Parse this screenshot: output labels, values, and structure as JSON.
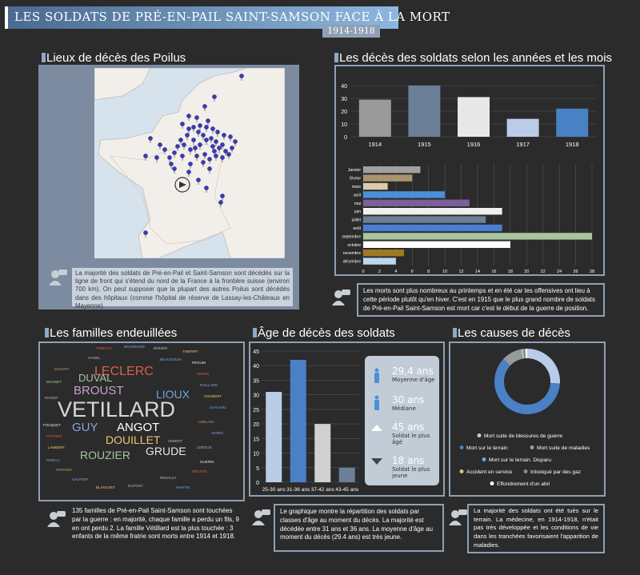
{
  "header": {
    "title": "LES SOLDATS DE PRÉ-EN-PAIL SAINT-SAMSON FACE À LA MORT",
    "years": "1914-1918"
  },
  "sections": {
    "map": "Lieux de décès des Poilus",
    "years": "Les décès des soldats selon les années et les mois",
    "families": "Les familles endeuillées",
    "age": "Âge de décès des soldats",
    "causes": "Les causes de décès"
  },
  "notes": {
    "map": "La majorité des soldats de Pré-en-Pail et Saint-Samson sont décédés sur la ligne de front qui s'étend du nord de la France à la frontière suisse (environ 700 km). On peut supposer que la plupart des autres Poilus sont décédés dans des hôpitaux (comme l'hôpital de réserve de Lassay-les-Châteaux en Mayenne).",
    "years": "Les morts sont plus nombreux au printemps et en été car les offensives ont lieu à cette période plutôt qu'en hiver. C'est en 1915 que le plus grand nombre de soldats de Pré-en-Pail Saint-Samson est mort car c'est le début de la guerre de position.",
    "families": "135 familles de Pré-en-Pail Saint-Samson sont touchées par la guerre : en majorité, chaque famille a perdu un fils, 9 en ont perdu 2. La famille Vétillard est la plus touchée : 3 enfants de la même fratrie sont morts entre 1914 et 1918.",
    "age": "Le graphique montre la répartition des soldats par classes d'âge au moment du décès. La majorité est décédée entre 31 ans et 36 ans. La moyenne d'âge au moment du décès (29.4 ans) est très jeune.",
    "causes": "La majorité des soldats ont été tués sur le terrain. La médecine, en 1914-1918, n'était pas très développée et les conditions de vie dans les tranchées favorisaient l'apparition de maladies."
  },
  "wordcloud": {
    "big": [
      "VETILLARD",
      "LECLERC",
      "BROUST",
      "LIOUX",
      "DUVAL",
      "GUY",
      "ANGOT",
      "DOUILLET",
      "ROUZIER",
      "GRUDE"
    ],
    "small": [
      "TRIBOUT",
      "BOUGEARD",
      "BODIER",
      "THIERRY",
      "HAMEL",
      "BEAUDOUIN",
      "PEGUIN",
      "BAUDRY",
      "MOREL",
      "RAILLARD",
      "MAUDET",
      "GOUBERT",
      "ROGER",
      "CHAUVEL",
      "FOUQUET",
      "LEBLANC",
      "POTTIER",
      "VIVIEN",
      "HEBERT",
      "LAMBERT",
      "LEROUX",
      "PINEAU",
      "GUERIN",
      "PERRIER",
      "BRETON",
      "GAUTIER",
      "RENAULT",
      "BLANCHET",
      "DUPONT",
      "MARTIN"
    ]
  },
  "age_stats": [
    {
      "value": "29,4 ans",
      "label": "Moyenne d'âge"
    },
    {
      "value": "30 ans",
      "label": "Médiane"
    },
    {
      "value": "45 ans",
      "label": "Soldat le plus âgé"
    },
    {
      "value": "18 ans",
      "label": "Soldat le plus jeune"
    }
  ],
  "chart_data": [
    {
      "id": "years",
      "type": "bar",
      "categories": [
        "1914",
        "1915",
        "1916",
        "1917",
        "1918"
      ],
      "values": [
        29,
        40,
        31,
        14,
        22
      ],
      "colors": [
        "#9a9a9a",
        "#6b7f99",
        "#e8e8e8",
        "#b9cde8",
        "#4a80c4"
      ],
      "ylim": [
        0,
        45
      ],
      "yticks": [
        0,
        10,
        20,
        30,
        40
      ]
    },
    {
      "id": "months",
      "type": "bar",
      "orientation": "horizontal",
      "categories": [
        "Janvier",
        "février",
        "mars",
        "avril",
        "mai",
        "juin",
        "juillet",
        "août",
        "septembre",
        "octobre",
        "novembre",
        "décembre"
      ],
      "values": [
        7,
        6,
        3,
        10,
        13,
        17,
        15,
        17,
        28,
        18,
        5,
        4
      ],
      "colors": [
        "#a0a0a0",
        "#a89470",
        "#e0c9a6",
        "#4a90d9",
        "#7a5f9a",
        "#f0f0f0",
        "#6b7f99",
        "#4a7fd0",
        "#a8c4a0",
        "#ffffff",
        "#a07820",
        "#b9d8f0"
      ],
      "xlim": [
        0,
        28
      ],
      "xticks": [
        0,
        2,
        4,
        6,
        8,
        10,
        12,
        14,
        16,
        18,
        20,
        22,
        24,
        26,
        28
      ]
    },
    {
      "id": "age",
      "type": "bar",
      "categories": [
        "25-30 ans",
        "31-36 ans",
        "37-42 ans",
        "43-45 ans"
      ],
      "values": [
        31,
        42,
        20,
        5
      ],
      "colors": [
        "#b9cde8",
        "#4a80c4",
        "#d0d0d0",
        "#6b7f99"
      ],
      "ylim": [
        0,
        45
      ],
      "yticks": [
        0,
        5,
        10,
        15,
        20,
        25,
        30,
        35,
        40,
        45
      ]
    },
    {
      "id": "causes",
      "type": "pie",
      "labels": [
        "Mort suite de blessures de guerre",
        "Mort sur le terrain",
        "Mort suite de maladies",
        "Mort sur le terrain. Disparu",
        "Accident en service",
        "Intoxiqué par des gaz",
        "Effondrement d'un abri"
      ],
      "values": [
        26,
        61,
        9,
        1,
        1,
        1,
        1
      ],
      "colors": [
        "#b9cde8",
        "#4a80c4",
        "#9a9a9a",
        "#6ca8e0",
        "#d8c090",
        "#888888",
        "#ffffff"
      ]
    }
  ]
}
